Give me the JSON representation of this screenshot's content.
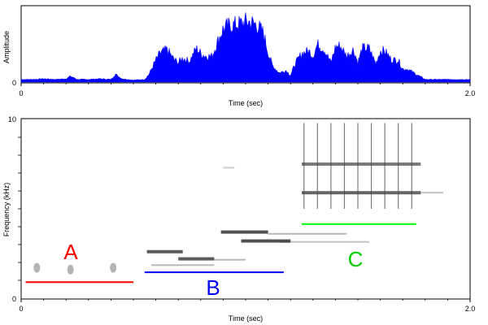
{
  "chart_data": [
    {
      "type": "area",
      "title": "",
      "xlabel": "Time (sec)",
      "ylabel": "Amplitude",
      "xlim": [
        0,
        2.0
      ],
      "x_ticks": [
        0,
        2.0
      ],
      "x_tick_labels": [
        "0",
        "2.0"
      ],
      "y_ticks": [
        0
      ],
      "y_tick_labels": [
        "0"
      ],
      "y_top_label": "",
      "color": "#0000ff",
      "x": [
        0.0,
        0.05,
        0.1,
        0.15,
        0.2,
        0.22,
        0.25,
        0.3,
        0.35,
        0.4,
        0.42,
        0.45,
        0.5,
        0.55,
        0.57,
        0.6,
        0.62,
        0.65,
        0.68,
        0.7,
        0.72,
        0.75,
        0.78,
        0.8,
        0.82,
        0.85,
        0.88,
        0.9,
        0.92,
        0.95,
        0.98,
        1.0,
        1.02,
        1.05,
        1.08,
        1.1,
        1.12,
        1.15,
        1.18,
        1.2,
        1.22,
        1.25,
        1.28,
        1.3,
        1.32,
        1.35,
        1.38,
        1.4,
        1.42,
        1.45,
        1.48,
        1.5,
        1.52,
        1.55,
        1.58,
        1.6,
        1.62,
        1.65,
        1.68,
        1.7,
        1.72,
        1.75,
        1.8,
        1.85,
        1.9,
        1.95,
        2.0
      ],
      "values": [
        0.04,
        0.04,
        0.05,
        0.04,
        0.05,
        0.09,
        0.04,
        0.04,
        0.05,
        0.04,
        0.12,
        0.05,
        0.03,
        0.04,
        0.12,
        0.34,
        0.45,
        0.5,
        0.35,
        0.3,
        0.37,
        0.32,
        0.52,
        0.44,
        0.4,
        0.4,
        0.66,
        0.82,
        0.86,
        0.88,
        0.9,
        0.93,
        0.92,
        0.88,
        0.75,
        0.45,
        0.25,
        0.14,
        0.18,
        0.1,
        0.28,
        0.44,
        0.48,
        0.4,
        0.58,
        0.5,
        0.3,
        0.54,
        0.56,
        0.4,
        0.5,
        0.3,
        0.52,
        0.52,
        0.28,
        0.48,
        0.48,
        0.34,
        0.34,
        0.2,
        0.2,
        0.14,
        0.04,
        0.04,
        0.04,
        0.04,
        0.04
      ]
    },
    {
      "type": "heatmap",
      "title": "",
      "xlabel": "Time (sec)",
      "ylabel": "Frequency (kHz)",
      "xlim": [
        0,
        2.0
      ],
      "ylim": [
        0,
        10
      ],
      "x_ticks": [
        0,
        2.0
      ],
      "x_tick_labels": [
        "0",
        "2.0"
      ],
      "y_ticks": [
        0,
        10
      ],
      "y_tick_labels": [
        "0",
        "10"
      ],
      "segments": [
        {
          "label": "A",
          "color": "#ff0000",
          "t_start": 0.02,
          "t_end": 0.5,
          "freq": 0.9
        },
        {
          "label": "B",
          "color": "#0000ff",
          "t_start": 0.55,
          "t_end": 1.17,
          "freq": 1.45
        },
        {
          "label": "C",
          "color": "#00ff00",
          "t_start": 1.25,
          "t_end": 1.76,
          "freq": 4.15
        }
      ]
    }
  ]
}
